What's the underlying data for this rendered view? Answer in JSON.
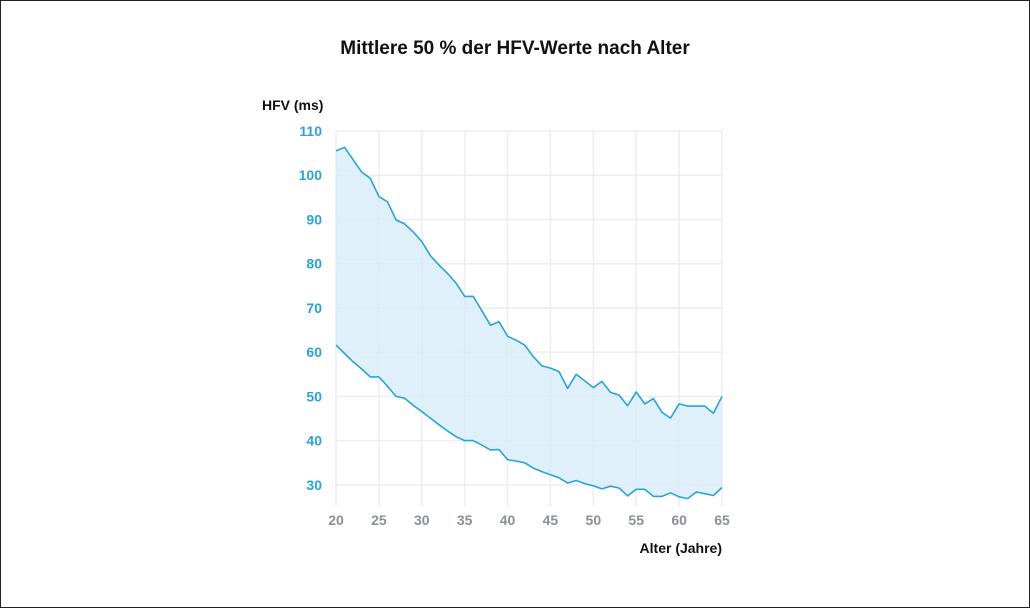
{
  "chart_data": {
    "type": "area",
    "title": "Mittlere 50 % der HFV-Werte nach Alter",
    "ylabel": "HFV (ms)",
    "xlabel": "Alter (Jahre)",
    "xlim": [
      20,
      65
    ],
    "ylim": [
      25,
      110
    ],
    "x_ticks": [
      20,
      25,
      30,
      35,
      40,
      45,
      50,
      55,
      60,
      65
    ],
    "y_ticks": [
      30,
      40,
      50,
      60,
      70,
      80,
      90,
      100,
      110
    ],
    "grid": true,
    "colors": {
      "line": "#2aa3dc",
      "fill": "#d6ebf8",
      "grid": "#eceef2"
    },
    "x": [
      20,
      21,
      22,
      23,
      24,
      25,
      26,
      27,
      28,
      29,
      30,
      31,
      32,
      33,
      34,
      35,
      36,
      37,
      38,
      39,
      40,
      41,
      42,
      43,
      44,
      45,
      46,
      47,
      48,
      49,
      50,
      51,
      52,
      53,
      54,
      55,
      56,
      57,
      58,
      59,
      60,
      61,
      62,
      63,
      64,
      65
    ],
    "series": [
      {
        "values": [
          105.5,
          106.3,
          103.5,
          100.7,
          99.3,
          95.2,
          94.0,
          89.9,
          89.0,
          87.2,
          85.0,
          81.8,
          79.7,
          77.8,
          75.6,
          72.6,
          72.6,
          69.4,
          66.1,
          66.9,
          63.6,
          62.7,
          61.6,
          59.0,
          56.9,
          56.4,
          55.6,
          51.8,
          55.0,
          53.5,
          52.0,
          53.4,
          50.9,
          50.3,
          47.9,
          51.0,
          48.3,
          49.5,
          46.4,
          45.1,
          48.3,
          47.8,
          47.8,
          47.8,
          46.2,
          50.0
        ]
      },
      {
        "values": [
          61.6,
          59.7,
          57.8,
          56.2,
          54.4,
          54.4,
          52.3,
          50.0,
          49.6,
          48.0,
          46.6,
          45.1,
          43.6,
          42.2,
          40.9,
          40.0,
          40.0,
          39.0,
          37.9,
          38.0,
          35.7,
          35.4,
          35.0,
          33.8,
          33.0,
          32.3,
          31.6,
          30.4,
          31.0,
          30.3,
          29.8,
          29.1,
          29.7,
          29.3,
          27.5,
          29.0,
          29.0,
          27.4,
          27.4,
          28.2,
          27.3,
          26.9,
          28.4,
          28.0,
          27.6,
          29.4
        ]
      }
    ]
  }
}
